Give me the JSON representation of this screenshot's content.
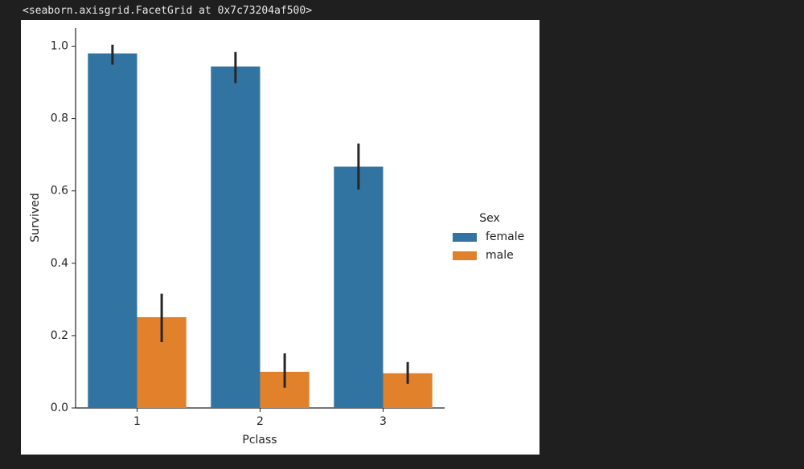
{
  "output_text": "<seaborn.axisgrid.FacetGrid at 0x7c73204af500>",
  "chart_data": {
    "type": "bar",
    "categories": [
      "1",
      "2",
      "3"
    ],
    "x_label": "Pclass",
    "y_label": "Survived",
    "series": [
      {
        "name": "female",
        "color": "#3274a1",
        "values": [
          0.98,
          0.944,
          0.667
        ],
        "ci_low": [
          0.949,
          0.898,
          0.604
        ],
        "ci_high": [
          1.004,
          0.984,
          0.731
        ]
      },
      {
        "name": "male",
        "color": "#e1812c",
        "values": [
          0.251,
          0.1,
          0.096
        ],
        "ci_low": [
          0.182,
          0.056,
          0.067
        ],
        "ci_high": [
          0.316,
          0.151,
          0.127
        ]
      }
    ],
    "legend_title": "Sex",
    "legend": "right",
    "ylim": [
      0,
      1.05
    ],
    "yticks": [
      {
        "value": 0,
        "label": "0.0"
      },
      {
        "value": 0.2,
        "label": "0.2"
      },
      {
        "value": 0.4,
        "label": "0.4"
      },
      {
        "value": 0.6,
        "label": "0.6"
      },
      {
        "value": 0.8,
        "label": "0.8"
      },
      {
        "value": 1,
        "label": "1.0"
      }
    ]
  }
}
